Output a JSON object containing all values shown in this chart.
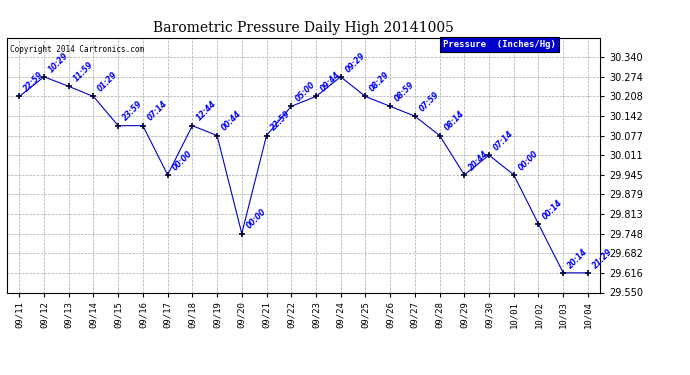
{
  "title": "Barometric Pressure Daily High 20141005",
  "copyright": "Copyright 2014 Cartronics.com",
  "legend_label": "Pressure  (Inches/Hg)",
  "x_labels": [
    "09/11",
    "09/12",
    "09/13",
    "09/14",
    "09/15",
    "09/16",
    "09/17",
    "09/18",
    "09/19",
    "09/20",
    "09/21",
    "09/22",
    "09/23",
    "09/24",
    "09/25",
    "09/26",
    "09/27",
    "09/28",
    "09/29",
    "09/30",
    "10/01",
    "10/02",
    "10/03",
    "10/04"
  ],
  "x_positions": [
    0,
    1,
    2,
    3,
    4,
    5,
    6,
    7,
    8,
    9,
    10,
    11,
    12,
    13,
    14,
    15,
    16,
    17,
    18,
    19,
    20,
    21,
    22,
    23
  ],
  "y_values": [
    30.208,
    30.274,
    30.242,
    30.208,
    30.11,
    30.11,
    29.945,
    30.11,
    30.077,
    29.748,
    30.077,
    30.175,
    30.208,
    30.274,
    30.208,
    30.175,
    30.142,
    30.077,
    29.945,
    30.011,
    29.945,
    29.78,
    29.616,
    29.616
  ],
  "annotations": [
    "22:59",
    "10:29",
    "11:59",
    "01:29",
    "23:59",
    "07:14",
    "00:00",
    "12:44",
    "00:44",
    "00:00",
    "22:59",
    "05:00",
    "09:44",
    "09:29",
    "08:29",
    "08:59",
    "07:59",
    "08:14",
    "20:44",
    "07:14",
    "00:00",
    "00:14",
    "20:14",
    "21:29"
  ],
  "ylim_min": 29.55,
  "ylim_max": 30.406,
  "yticks": [
    29.55,
    29.616,
    29.682,
    29.748,
    29.813,
    29.879,
    29.945,
    30.011,
    30.077,
    30.142,
    30.208,
    30.274,
    30.34
  ],
  "line_color": "#0000CC",
  "marker": "+",
  "marker_color": "#000033",
  "bg_color": "#ffffff",
  "grid_color": "#aaaaaa",
  "title_color": "#000000",
  "annot_color": "#0000FF",
  "copyright_color": "#000000",
  "legend_bg": "#0000CC",
  "legend_text_color": "#ffffff",
  "fig_width": 6.9,
  "fig_height": 3.75,
  "dpi": 100
}
